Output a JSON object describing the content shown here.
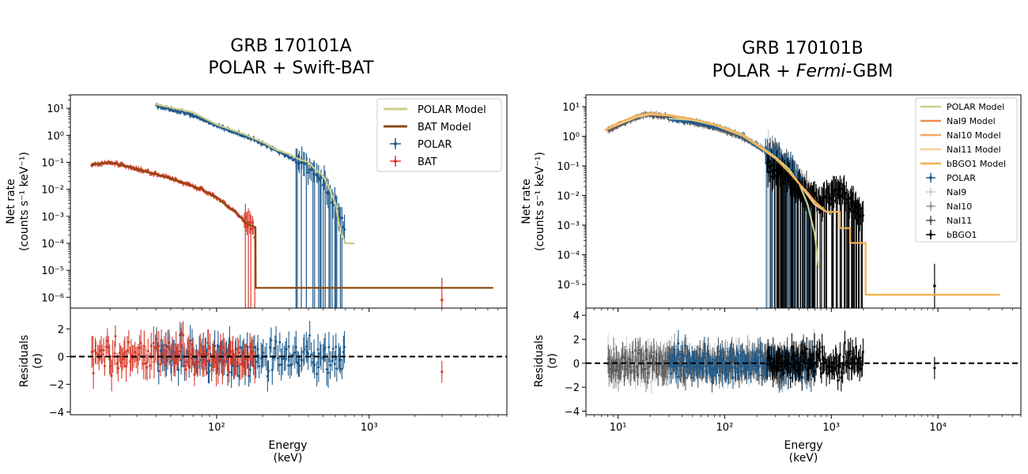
{
  "figure": "GRB spectral fits",
  "colors": {
    "polar": "#1f5a8a",
    "bat": "#d63a2a",
    "polar_model": "#cccc8a",
    "bat_model": "#8b4a12",
    "nai9_model": "#f08c4c",
    "nai10_model": "#f5a864",
    "nai11_model": "#f5d09a",
    "bbgo1_model": "#f2b04c",
    "nai9": "#cfcfcf",
    "nai10": "#9a9a9a",
    "nai11": "#5a5a5a",
    "bbgo1": "#000000"
  },
  "chart_data": [
    {
      "type": "scatter",
      "panel": "left",
      "title_line1": "GRB 170101A",
      "title_line2": "POLAR + Swift-BAT",
      "xlabel_line1": "Energy",
      "xlabel_line2": "(keV)",
      "ylabel_line1": "Net rate",
      "ylabel_line2": "(counts s⁻¹ keV⁻¹)",
      "resid_label_line1": "Residuals",
      "resid_label_line2": "(σ)",
      "xscale": "log",
      "xlim": [
        11,
        8000
      ],
      "ylim_log10": [
        -6.4,
        1.5
      ],
      "resid_ylim": [
        -4.2,
        3.5
      ],
      "x_ticks": [
        {
          "value": 100,
          "label": "10²"
        },
        {
          "value": 1000,
          "label": "10³"
        }
      ],
      "y_ticks": [
        {
          "value": 1,
          "label": "10¹"
        },
        {
          "value": 0,
          "label": "10⁰"
        },
        {
          "value": -1,
          "label": "10⁻¹"
        },
        {
          "value": -2,
          "label": "10⁻²"
        },
        {
          "value": -3,
          "label": "10⁻³"
        },
        {
          "value": -4,
          "label": "10⁻⁴"
        },
        {
          "value": -5,
          "label": "10⁻⁵"
        },
        {
          "value": -6,
          "label": "10⁻⁶"
        }
      ],
      "resid_ticks": [
        {
          "value": 2,
          "label": "2"
        },
        {
          "value": 0,
          "label": "0"
        },
        {
          "value": -2,
          "label": "−2"
        },
        {
          "value": -4,
          "label": "−4"
        }
      ],
      "legend": [
        "POLAR Model",
        "BAT Model",
        "POLAR",
        "BAT"
      ],
      "legend_position": "top-right",
      "series": [
        {
          "name": "POLAR",
          "kind": "data",
          "color_key": "polar",
          "curve": [
            [
              40,
              1.1
            ],
            [
              70,
              0.75
            ],
            [
              100,
              0.35
            ],
            [
              150,
              0.0
            ],
            [
              200,
              -0.3
            ],
            [
              300,
              -0.8
            ],
            [
              400,
              -1.2
            ],
            [
              500,
              -1.7
            ],
            [
              600,
              -2.6
            ],
            [
              700,
              -3.5
            ]
          ],
          "x_range": [
            40,
            700
          ],
          "drop_from": 330
        },
        {
          "name": "BAT",
          "kind": "data",
          "color_key": "bat",
          "curve": [
            [
              15,
              -1.1
            ],
            [
              20,
              -1.0
            ],
            [
              30,
              -1.25
            ],
            [
              50,
              -1.6
            ],
            [
              80,
              -2.0
            ],
            [
              100,
              -2.3
            ],
            [
              130,
              -2.8
            ],
            [
              160,
              -3.3
            ],
            [
              180,
              -3.6
            ]
          ],
          "x_range": [
            15,
            180
          ],
          "drop_from": 150
        },
        {
          "name": "POLAR Model",
          "kind": "model",
          "color_key": "polar_model",
          "curve": [
            [
              40,
              1.15
            ],
            [
              70,
              0.85
            ],
            [
              100,
              0.4
            ],
            [
              150,
              0.05
            ],
            [
              200,
              -0.25
            ],
            [
              250,
              -0.55
            ],
            [
              300,
              -0.7
            ],
            [
              350,
              -0.9
            ],
            [
              400,
              -1.0
            ],
            [
              450,
              -1.3
            ],
            [
              500,
              -1.5
            ],
            [
              550,
              -2.0
            ],
            [
              600,
              -2.5
            ],
            [
              650,
              -3.6
            ],
            [
              700,
              -4.0
            ],
            [
              800,
              -4.0
            ]
          ]
        },
        {
          "name": "BAT Model",
          "kind": "model",
          "color_key": "bat_model",
          "curve": [
            [
              15,
              -1.1
            ],
            [
              20,
              -1.0
            ],
            [
              30,
              -1.25
            ],
            [
              50,
              -1.6
            ],
            [
              80,
              -2.0
            ],
            [
              100,
              -2.3
            ],
            [
              130,
              -2.8
            ],
            [
              160,
              -3.3
            ],
            [
              180,
              -3.4
            ],
            [
              180.5,
              -5.65
            ],
            [
              6500,
              -5.65
            ]
          ]
        }
      ],
      "extra_points": [
        {
          "series": "BAT",
          "x": 3000,
          "y_log10": -6.1,
          "resid": -1.1
        }
      ]
    },
    {
      "type": "scatter",
      "panel": "right",
      "title_line1": "GRB 170101B",
      "title_line2_prefix": "POLAR + ",
      "title_line2_italic": "Fermi",
      "title_line2_suffix": "-GBM",
      "xlabel_line1": "Energy",
      "xlabel_line2": "(keV)",
      "ylabel_line1": "Net rate",
      "ylabel_line2": "(counts s⁻¹ keV⁻¹)",
      "resid_label_line1": "Residuals",
      "resid_label_line2": "(σ)",
      "xscale": "log",
      "xlim": [
        5,
        60000
      ],
      "ylim_log10": [
        -5.8,
        1.4
      ],
      "resid_ylim": [
        -4.3,
        4.6
      ],
      "x_ticks": [
        {
          "value": 10,
          "label": "10¹"
        },
        {
          "value": 100,
          "label": "10²"
        },
        {
          "value": 1000,
          "label": "10³"
        },
        {
          "value": 10000,
          "label": "10⁴"
        }
      ],
      "y_ticks": [
        {
          "value": 1,
          "label": "10¹"
        },
        {
          "value": 0,
          "label": "10⁰"
        },
        {
          "value": -1,
          "label": "10⁻¹"
        },
        {
          "value": -2,
          "label": "10⁻²"
        },
        {
          "value": -3,
          "label": "10⁻³"
        },
        {
          "value": -4,
          "label": "10⁻⁴"
        },
        {
          "value": -5,
          "label": "10⁻⁵"
        }
      ],
      "resid_ticks": [
        {
          "value": 4,
          "label": "4"
        },
        {
          "value": 2,
          "label": "2"
        },
        {
          "value": 0,
          "label": "0"
        },
        {
          "value": -2,
          "label": "−2"
        },
        {
          "value": -4,
          "label": "−4"
        }
      ],
      "legend": [
        "POLAR Model",
        "NaI9 Model",
        "NaI10 Model",
        "NaI11 Model",
        "bBGO1 Model",
        "POLAR",
        "NaI9",
        "NaI10",
        "NaI11",
        "bBGO1"
      ],
      "legend_position": "top-right",
      "series": [
        {
          "name": "NaI9",
          "kind": "data",
          "color_key": "nai9",
          "curve": [
            [
              8,
              0.2
            ],
            [
              12,
              0.5
            ],
            [
              18,
              0.75
            ],
            [
              25,
              0.7
            ],
            [
              40,
              0.55
            ],
            [
              70,
              0.35
            ],
            [
              100,
              0.2
            ],
            [
              150,
              -0.05
            ],
            [
              200,
              -0.3
            ],
            [
              300,
              -0.7
            ],
            [
              400,
              -1.1
            ],
            [
              500,
              -1.6
            ],
            [
              700,
              -2.3
            ]
          ],
          "x_range": [
            8,
            700
          ],
          "drop_from": 250
        },
        {
          "name": "NaI10",
          "kind": "data",
          "color_key": "nai10",
          "curve": [
            [
              8,
              0.2
            ],
            [
              12,
              0.5
            ],
            [
              18,
              0.75
            ],
            [
              25,
              0.7
            ],
            [
              40,
              0.55
            ],
            [
              70,
              0.35
            ],
            [
              100,
              0.2
            ],
            [
              150,
              -0.05
            ],
            [
              200,
              -0.3
            ],
            [
              300,
              -0.7
            ],
            [
              400,
              -1.1
            ],
            [
              500,
              -1.6
            ],
            [
              700,
              -2.3
            ]
          ],
          "x_range": [
            8,
            700
          ],
          "drop_from": 260
        },
        {
          "name": "NaI11",
          "kind": "data",
          "color_key": "nai11",
          "curve": [
            [
              8,
              0.2
            ],
            [
              12,
              0.5
            ],
            [
              18,
              0.75
            ],
            [
              25,
              0.7
            ],
            [
              40,
              0.55
            ],
            [
              70,
              0.35
            ],
            [
              100,
              0.2
            ],
            [
              150,
              -0.05
            ],
            [
              200,
              -0.3
            ],
            [
              300,
              -0.7
            ],
            [
              400,
              -1.1
            ],
            [
              500,
              -1.6
            ],
            [
              700,
              -2.3
            ]
          ],
          "x_range": [
            8,
            700
          ],
          "drop_from": 260
        },
        {
          "name": "POLAR",
          "kind": "data",
          "color_key": "polar",
          "curve": [
            [
              30,
              0.6
            ],
            [
              50,
              0.5
            ],
            [
              80,
              0.35
            ],
            [
              100,
              0.25
            ],
            [
              150,
              0.0
            ],
            [
              200,
              -0.3
            ],
            [
              300,
              -0.75
            ],
            [
              400,
              -1.2
            ],
            [
              500,
              -1.7
            ],
            [
              700,
              -2.5
            ]
          ],
          "x_range": [
            30,
            700
          ],
          "drop_from": 240
        },
        {
          "name": "bBGO1",
          "kind": "data",
          "color_key": "bbgo1",
          "curve": [
            [
              250,
              -1.0
            ],
            [
              400,
              -1.4
            ],
            [
              600,
              -2.0
            ],
            [
              800,
              -2.2
            ],
            [
              1000,
              -2.0
            ],
            [
              1200,
              -1.7
            ],
            [
              1500,
              -2.3
            ],
            [
              2000,
              -2.6
            ]
          ],
          "x_range": [
            250,
            2000
          ],
          "drop_from": 250
        },
        {
          "name": "POLAR Model",
          "kind": "model",
          "color_key": "polar_model",
          "curve": [
            [
              30,
              0.6
            ],
            [
              50,
              0.55
            ],
            [
              80,
              0.4
            ],
            [
              100,
              0.3
            ],
            [
              150,
              0.05
            ],
            [
              200,
              -0.25
            ],
            [
              300,
              -0.7
            ],
            [
              400,
              -1.1
            ],
            [
              500,
              -1.6
            ],
            [
              600,
              -2.3
            ],
            [
              700,
              -3.3
            ],
            [
              760,
              -4.45
            ]
          ]
        },
        {
          "name": "NaI9 Model",
          "kind": "model",
          "color_key": "nai9_model",
          "curve": [
            [
              7.5,
              0.2
            ],
            [
              10,
              0.4
            ],
            [
              15,
              0.65
            ],
            [
              20,
              0.75
            ],
            [
              30,
              0.7
            ],
            [
              50,
              0.55
            ],
            [
              80,
              0.38
            ],
            [
              100,
              0.25
            ],
            [
              150,
              0.0
            ],
            [
              200,
              -0.3
            ],
            [
              300,
              -0.75
            ],
            [
              400,
              -1.2
            ],
            [
              500,
              -1.6
            ],
            [
              700,
              -2.3
            ],
            [
              900,
              -2.55
            ]
          ]
        },
        {
          "name": "NaI10 Model",
          "kind": "model",
          "color_key": "nai10_model",
          "curve": [
            [
              7.5,
              0.2
            ],
            [
              10,
              0.4
            ],
            [
              15,
              0.65
            ],
            [
              20,
              0.75
            ],
            [
              30,
              0.7
            ],
            [
              50,
              0.55
            ],
            [
              80,
              0.38
            ],
            [
              100,
              0.25
            ],
            [
              150,
              0.0
            ],
            [
              200,
              -0.3
            ],
            [
              300,
              -0.75
            ],
            [
              400,
              -1.2
            ],
            [
              500,
              -1.6
            ],
            [
              700,
              -2.3
            ],
            [
              900,
              -2.55
            ]
          ]
        },
        {
          "name": "NaI11 Model",
          "kind": "model",
          "color_key": "nai11_model",
          "curve": [
            [
              7.5,
              0.2
            ],
            [
              10,
              0.4
            ],
            [
              15,
              0.65
            ],
            [
              20,
              0.75
            ],
            [
              30,
              0.7
            ],
            [
              50,
              0.55
            ],
            [
              80,
              0.38
            ],
            [
              100,
              0.25
            ],
            [
              150,
              0.0
            ],
            [
              200,
              -0.3
            ],
            [
              300,
              -0.75
            ],
            [
              400,
              -1.2
            ],
            [
              500,
              -1.6
            ],
            [
              700,
              -2.3
            ],
            [
              900,
              -2.55
            ]
          ]
        },
        {
          "name": "bBGO1 Model",
          "kind": "model",
          "color_key": "bbgo1_model",
          "curve": [
            [
              7.5,
              0.2
            ],
            [
              10,
              0.45
            ],
            [
              15,
              0.7
            ],
            [
              20,
              0.78
            ],
            [
              30,
              0.72
            ],
            [
              50,
              0.58
            ],
            [
              80,
              0.4
            ],
            [
              100,
              0.28
            ],
            [
              150,
              0.02
            ],
            [
              200,
              -0.28
            ],
            [
              300,
              -0.75
            ],
            [
              400,
              -1.2
            ],
            [
              500,
              -1.6
            ],
            [
              600,
              -1.9
            ],
            [
              700,
              -2.2
            ],
            [
              900,
              -2.55
            ],
            [
              1000,
              -2.55
            ],
            [
              1200,
              -2.55
            ],
            [
              1200.5,
              -3.1
            ],
            [
              1500,
              -3.1
            ],
            [
              1500.5,
              -3.6
            ],
            [
              2100,
              -3.6
            ],
            [
              2100.5,
              -5.35
            ],
            [
              38000,
              -5.35
            ]
          ]
        }
      ],
      "extra_points": [
        {
          "series": "bBGO1",
          "x": 9300,
          "y_log10": -5.05,
          "resid": -0.4
        }
      ]
    }
  ]
}
